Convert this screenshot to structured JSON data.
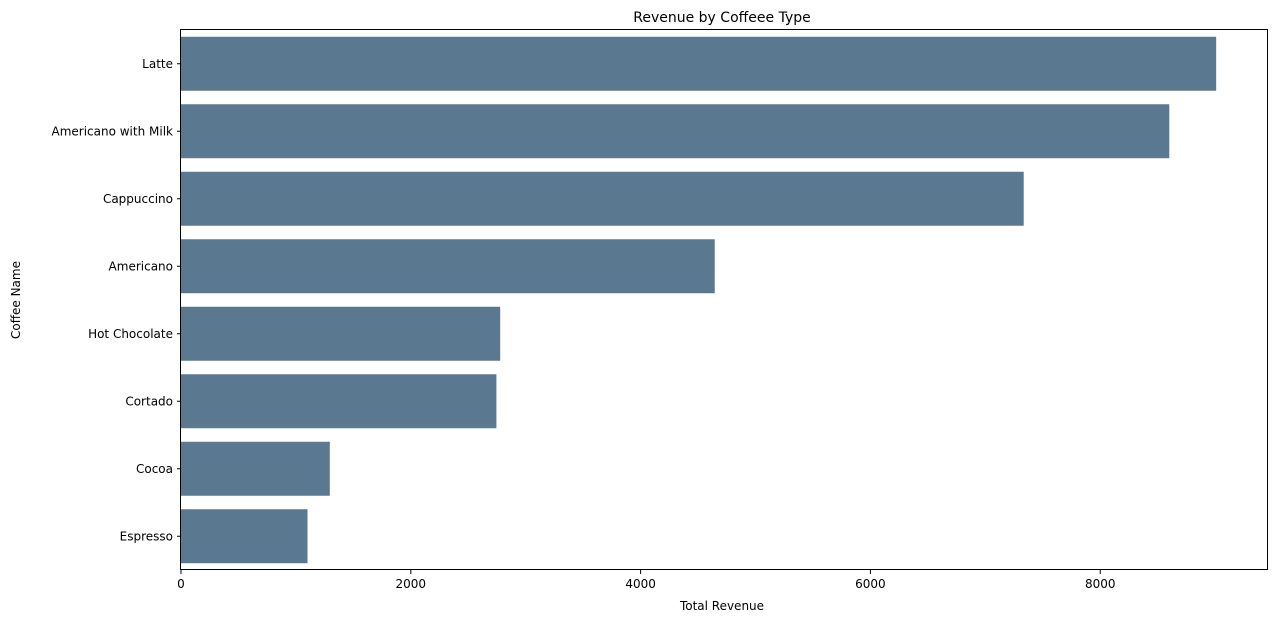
{
  "chart_data": {
    "type": "bar",
    "orientation": "horizontal",
    "title": "Revenue by Coffeee Type",
    "xlabel": "Total Revenue",
    "ylabel": "Coffee Name",
    "categories": [
      "Latte",
      "Americano with Milk",
      "Cappuccino",
      "Americano",
      "Hot Chocolate",
      "Cortado",
      "Cocoa",
      "Espresso"
    ],
    "values": [
      9009,
      8601,
      7334,
      4645,
      2778,
      2745,
      1295,
      1101
    ],
    "xlim": [
      0,
      9460
    ],
    "xticks": [
      0,
      2000,
      4000,
      6000,
      8000
    ],
    "xtick_labels": [
      "0",
      "2000",
      "4000",
      "6000",
      "8000"
    ],
    "grid": false,
    "legend": "none",
    "bar_color": "#5b7891"
  }
}
